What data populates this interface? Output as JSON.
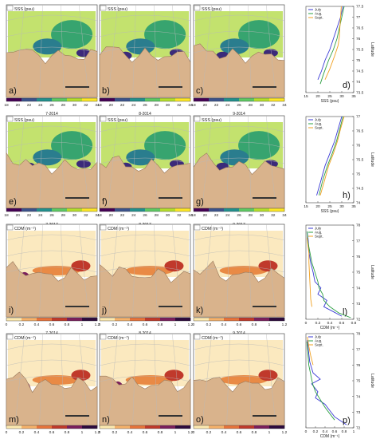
{
  "colors": {
    "land": "#d9b38c",
    "coast": "#9a7a5c",
    "grid": "#b9b9b9",
    "ocean_white": "#ffffff",
    "july": "#3a3ad6",
    "aug": "#2ea043",
    "sept": "#f0a020"
  },
  "panels": [
    {
      "letter": "a)",
      "title": "SSS (psu)",
      "date": "7-2014",
      "kind": "sss"
    },
    {
      "letter": "b)",
      "title": "SSS (psu)",
      "date": "8-2014",
      "kind": "sss"
    },
    {
      "letter": "c)",
      "title": "SSS (psu)",
      "date": "9-2014",
      "kind": "sss"
    },
    {
      "letter": "e)",
      "title": "SSS (psu)",
      "date": "7-2017",
      "kind": "sss"
    },
    {
      "letter": "f)",
      "title": "SSS (psu)",
      "date": "8-2017",
      "kind": "sss"
    },
    {
      "letter": "g)",
      "title": "SSS (psu)",
      "date": "9-2017",
      "kind": "sss"
    },
    {
      "letter": "i)",
      "title": "CDM (m⁻¹)",
      "date": "7-2014",
      "kind": "cdm"
    },
    {
      "letter": "j)",
      "title": "CDM (m⁻¹)",
      "date": "8-2014",
      "kind": "cdm"
    },
    {
      "letter": "k)",
      "title": "CDM (m⁻¹)",
      "date": "9-2014",
      "kind": "cdm"
    },
    {
      "letter": "m)",
      "title": "CDM (m⁻¹)",
      "date": "7-2017",
      "kind": "cdm"
    },
    {
      "letter": "n)",
      "title": "CDM (m⁻¹)",
      "date": "8-2017",
      "kind": "cdm"
    },
    {
      "letter": "o)",
      "title": "CDM (m⁻¹)",
      "date": "9-2017",
      "kind": "cdm"
    }
  ],
  "colorbars": [
    {
      "kind": "sss",
      "ticks": [
        "18",
        "20",
        "22",
        "24",
        "26",
        "28",
        "30",
        "32",
        "34"
      ]
    },
    {
      "kind": "sss",
      "ticks": [
        "18",
        "20",
        "22",
        "24",
        "26",
        "28",
        "30",
        "32",
        "34"
      ]
    },
    {
      "kind": "cdm",
      "ticks": [
        "0",
        "0.2",
        "0.4",
        "0.6",
        "0.8",
        "1",
        "1.2"
      ]
    },
    {
      "kind": "cdm",
      "ticks": [
        "0",
        "0.2",
        "0.4",
        "0.6",
        "0.8",
        "1",
        "1.2"
      ]
    }
  ],
  "chart_data": [
    {
      "type": "line",
      "letter": "d)",
      "xlabel": "SSS (psu)",
      "ylabel": "Latitude",
      "xlim": [
        15,
        35
      ],
      "ylim": [
        73.5,
        77.5
      ],
      "xticks": [
        "15",
        "20",
        "25",
        "30",
        "35"
      ],
      "yticks": [
        "73.5",
        "74",
        "74.5",
        "75",
        "75.5",
        "76",
        "76.5",
        "77",
        "77.5"
      ],
      "legend": [
        "July",
        "Aug.",
        "Sept."
      ],
      "series": [
        {
          "name": "July",
          "color": "#3a3ad6",
          "points": [
            [
              20,
              74.1
            ],
            [
              21.5,
              74.5
            ],
            [
              23,
              75
            ],
            [
              25,
              75.5
            ],
            [
              26.5,
              76
            ],
            [
              28,
              76.5
            ],
            [
              29.5,
              77
            ],
            [
              30.5,
              77.5
            ]
          ]
        },
        {
          "name": "Aug.",
          "color": "#2ea043",
          "points": [
            [
              21,
              73.9
            ],
            [
              22.5,
              74.4
            ],
            [
              24.5,
              75
            ],
            [
              26.5,
              75.5
            ],
            [
              28,
              76
            ],
            [
              29,
              76.5
            ],
            [
              30,
              77
            ],
            [
              31,
              77.5
            ]
          ]
        },
        {
          "name": "Sept.",
          "color": "#f0a020",
          "points": [
            [
              23,
              74.1
            ],
            [
              25,
              74.6
            ],
            [
              27,
              75.2
            ],
            [
              28.5,
              75.7
            ],
            [
              29,
              76.1
            ],
            [
              29.2,
              76.5
            ],
            [
              29.5,
              77
            ],
            [
              29.8,
              77.5
            ]
          ]
        }
      ]
    },
    {
      "type": "line",
      "letter": "h)",
      "xlabel": "SSS (psu)",
      "ylabel": "Latitude",
      "xlim": [
        15,
        35
      ],
      "ylim": [
        73.5,
        77
      ],
      "xticks": [
        "15",
        "20",
        "25",
        "30",
        "35"
      ],
      "yticks": [
        "74",
        "74.5",
        "75",
        "75.5",
        "76",
        "76.5",
        "77"
      ],
      "legend": [
        "July",
        "Aug.",
        "Sept."
      ],
      "series": [
        {
          "name": "July",
          "color": "#3a3ad6",
          "points": [
            [
              19.5,
              73.8
            ],
            [
              21,
              74.3
            ],
            [
              23,
              75
            ],
            [
              25,
              75.5
            ],
            [
              27,
              76
            ],
            [
              28.5,
              76.5
            ],
            [
              30,
              77
            ]
          ]
        },
        {
          "name": "Aug.",
          "color": "#2ea043",
          "points": [
            [
              20.5,
              73.8
            ],
            [
              22,
              74.4
            ],
            [
              24,
              75
            ],
            [
              26,
              75.5
            ],
            [
              27.8,
              76
            ],
            [
              29.2,
              76.5
            ],
            [
              30.5,
              77
            ]
          ]
        },
        {
          "name": "Sept.",
          "color": "#f0a020",
          "points": [
            [
              21,
              73.8
            ],
            [
              22.5,
              74.3
            ],
            [
              24.5,
              75
            ],
            [
              26.5,
              75.5
            ],
            [
              28.2,
              76
            ],
            [
              29.5,
              76.5
            ],
            [
              31,
              77
            ]
          ]
        }
      ]
    },
    {
      "type": "line",
      "letter": "l)",
      "xlabel": "CDM (m⁻¹)",
      "ylabel": "Latitude",
      "xlim": [
        0,
        0.8
      ],
      "ylim": [
        72,
        78
      ],
      "xticks": [
        "0",
        "0.2",
        "0.4",
        "0.6",
        "0.8"
      ],
      "yticks": [
        "72",
        "73",
        "74",
        "75",
        "76",
        "77",
        "78"
      ],
      "legend": [
        "July",
        "Aug.",
        "Sept."
      ],
      "series": [
        {
          "name": "July",
          "color": "#3a3ad6",
          "points": [
            [
              0.02,
              77.6
            ],
            [
              0.04,
              77
            ],
            [
              0.05,
              76.3
            ],
            [
              0.08,
              75.6
            ],
            [
              0.12,
              75
            ],
            [
              0.15,
              74.4
            ],
            [
              0.25,
              74
            ],
            [
              0.2,
              73.6
            ],
            [
              0.35,
              73.2
            ],
            [
              0.3,
              72.8
            ],
            [
              0.45,
              72.5
            ],
            [
              0.6,
              72.2
            ]
          ]
        },
        {
          "name": "Aug.",
          "color": "#2ea043",
          "points": [
            [
              0.02,
              77.6
            ],
            [
              0.03,
              77
            ],
            [
              0.06,
              76.4
            ],
            [
              0.1,
              75.6
            ],
            [
              0.15,
              75
            ],
            [
              0.2,
              74.4
            ],
            [
              0.22,
              74
            ],
            [
              0.28,
              73.6
            ],
            [
              0.3,
              73.2
            ],
            [
              0.4,
              72.8
            ],
            [
              0.55,
              72.4
            ],
            [
              0.75,
              72.1
            ]
          ]
        },
        {
          "name": "Sept.",
          "color": "#f0a020",
          "points": [
            [
              0.02,
              77.2
            ],
            [
              0.03,
              76.8
            ],
            [
              0.05,
              76.2
            ],
            [
              0.05,
              75.6
            ],
            [
              0.08,
              73.3
            ],
            [
              0.1,
              72.8
            ]
          ]
        }
      ]
    },
    {
      "type": "line",
      "letter": "p)",
      "xlabel": "CDM (m⁻¹)",
      "ylabel": "Latitude",
      "xlim": [
        0,
        1
      ],
      "ylim": [
        72,
        78
      ],
      "xticks": [
        "0",
        "0.2",
        "0.4",
        "0.6",
        "0.8",
        "1"
      ],
      "yticks": [
        "72",
        "73",
        "74",
        "75",
        "76",
        "77",
        "78"
      ],
      "legend": [
        "July",
        "Aug.",
        "Sept."
      ],
      "series": [
        {
          "name": "July",
          "color": "#3a3ad6",
          "points": [
            [
              0.03,
              77.6
            ],
            [
              0.05,
              77
            ],
            [
              0.08,
              76.2
            ],
            [
              0.15,
              75.5
            ],
            [
              0.3,
              75.1
            ],
            [
              0.12,
              74.8
            ],
            [
              0.25,
              74.3
            ],
            [
              0.2,
              73.9
            ],
            [
              0.4,
              73.5
            ],
            [
              0.5,
              73.1
            ],
            [
              0.6,
              72.7
            ],
            [
              0.85,
              72.2
            ]
          ]
        },
        {
          "name": "Aug.",
          "color": "#2ea043",
          "points": [
            [
              0.02,
              77.5
            ],
            [
              0.04,
              76.8
            ],
            [
              0.06,
              76
            ],
            [
              0.1,
              75.4
            ],
            [
              0.14,
              74.8
            ],
            [
              0.2,
              74.3
            ],
            [
              0.3,
              73.8
            ],
            [
              0.4,
              73.3
            ],
            [
              0.5,
              72.9
            ],
            [
              0.6,
              72.5
            ]
          ]
        },
        {
          "name": "Sept.",
          "color": "#f0a020",
          "points": [
            [
              0.03,
              77.8
            ],
            [
              0.06,
              77.2
            ],
            [
              0.1,
              76.6
            ],
            [
              0.15,
              76
            ]
          ]
        }
      ]
    }
  ]
}
